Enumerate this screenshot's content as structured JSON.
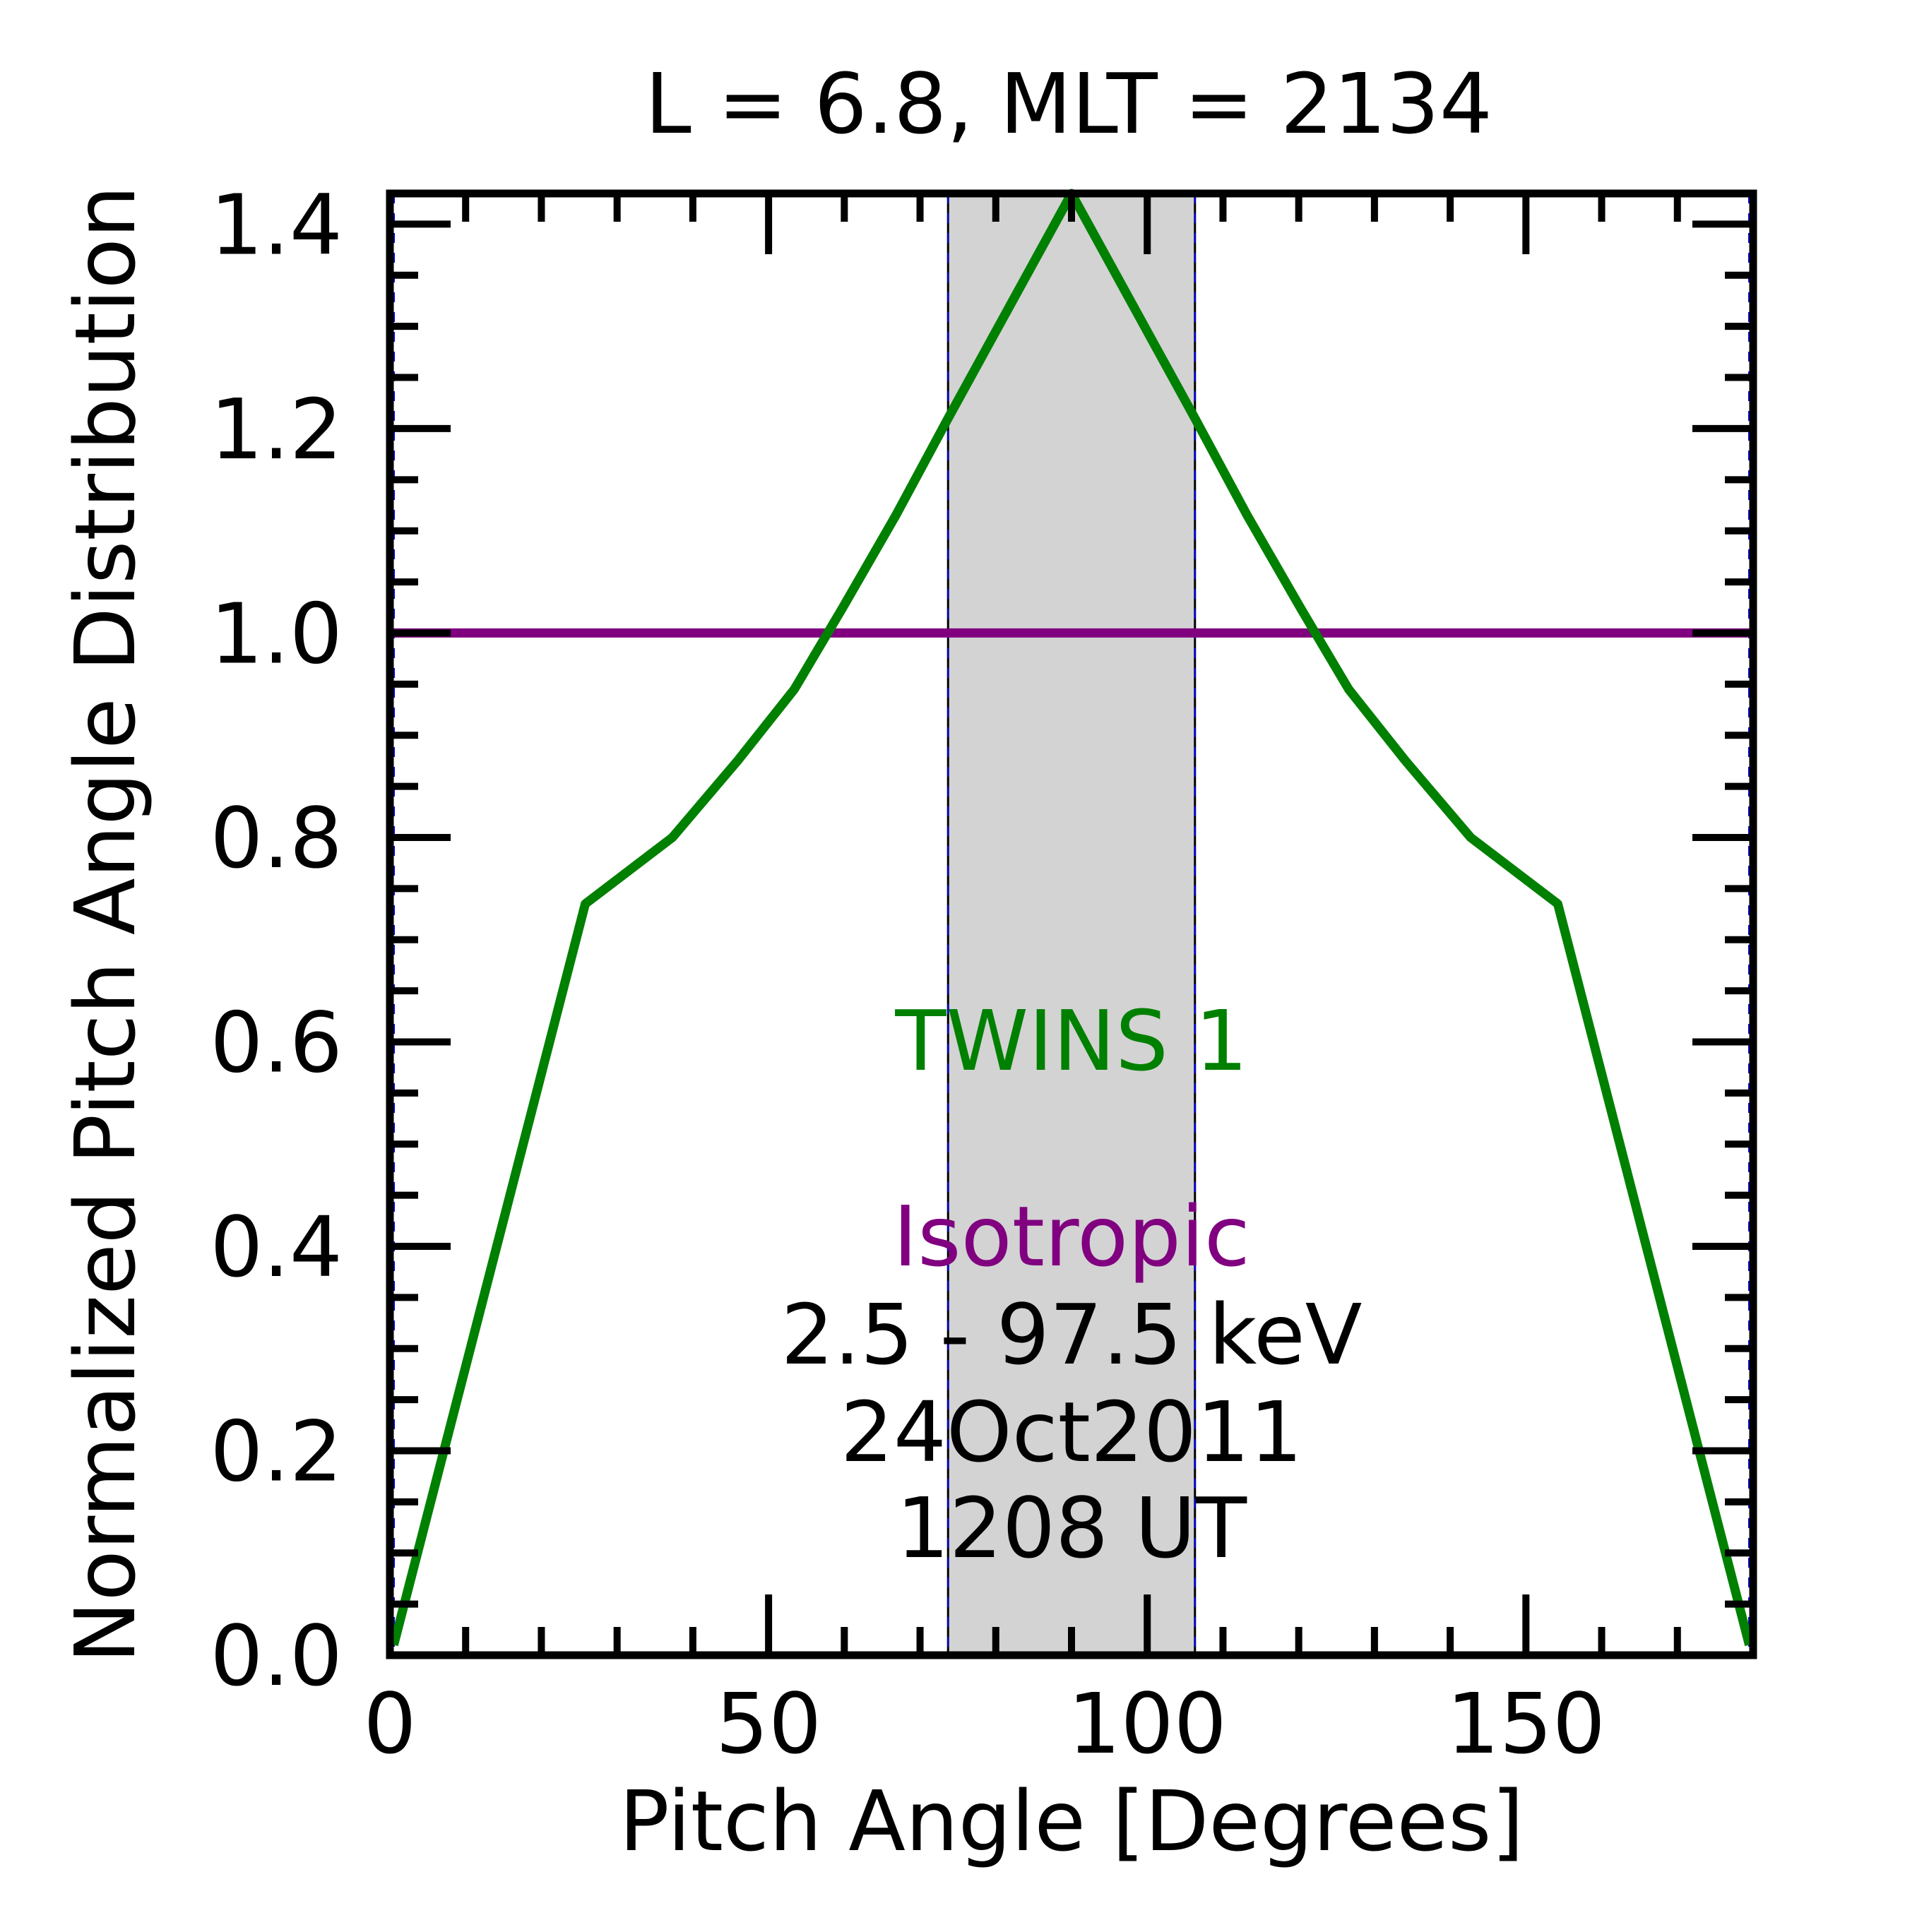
{
  "chart_data": {
    "type": "line",
    "title": "L =  6.8, MLT = 2134",
    "xlabel": "Pitch Angle [Degrees]",
    "ylabel": "Normalized Pitch Angle Distribution",
    "xlim": [
      0,
      180
    ],
    "ylim": [
      0,
      1.43
    ],
    "x_ticks": [
      0,
      50,
      100,
      150
    ],
    "x_tick_labels": [
      "0",
      "50",
      "100",
      "150"
    ],
    "y_ticks": [
      0.0,
      0.2,
      0.4,
      0.6,
      0.8,
      1.0,
      1.2,
      1.4
    ],
    "y_tick_labels": [
      "0.0",
      "0.2",
      "0.4",
      "0.6",
      "0.8",
      "1.0",
      "1.2",
      "1.4"
    ],
    "grid": false,
    "shaded_band": {
      "x_start": 73.7,
      "x_end": 106.3,
      "color": "#d3d3d3"
    },
    "series": [
      {
        "name": "TWINS 1",
        "color": "#008000",
        "x": [
          0.5,
          25.8,
          37.3,
          45.9,
          53.4,
          59.8,
          66.8,
          73.7,
          90.0,
          106.3,
          113.2,
          120.2,
          126.6,
          134.1,
          142.7,
          154.2,
          179.5
        ],
        "y": [
          0.01,
          0.735,
          0.8,
          0.875,
          0.945,
          1.025,
          1.115,
          1.21,
          1.43,
          1.21,
          1.115,
          1.025,
          0.945,
          0.875,
          0.8,
          0.735,
          0.01
        ]
      },
      {
        "name": "Isotropic",
        "color": "#800080",
        "x": [
          0.5,
          179.5
        ],
        "y": [
          1.0,
          1.0
        ]
      }
    ],
    "annotations": [
      {
        "text": "TWINS 1",
        "color": "#008000"
      },
      {
        "text": "Isotropic",
        "color": "#800080"
      },
      {
        "text": "2.5 - 97.5 keV",
        "color": "#000000"
      },
      {
        "text": "24Oct2011",
        "color": "#000000"
      },
      {
        "text": "1208 UT",
        "color": "#000000"
      }
    ]
  }
}
